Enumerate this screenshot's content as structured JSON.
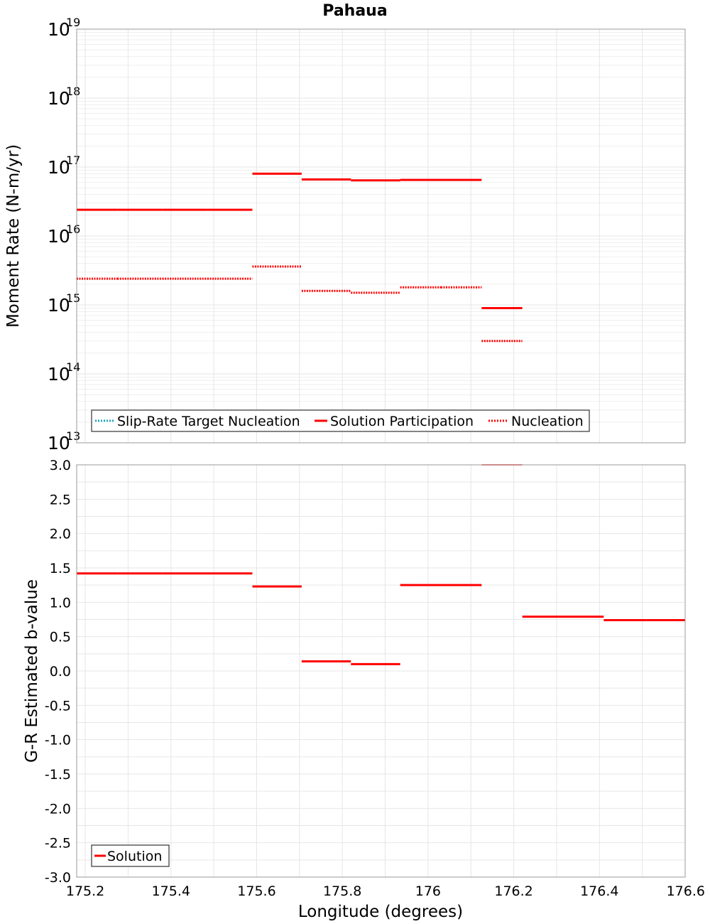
{
  "chart_data": [
    {
      "type": "line",
      "title": "Pahaua",
      "ylabel": "Moment Rate (N-m/yr)",
      "xlabel": "",
      "yscale": "log",
      "ylim": [
        10000000000000.0,
        1e+19
      ],
      "xlim": [
        175.18,
        176.6
      ],
      "y_ticks": [
        {
          "base": "10",
          "exp": "13"
        },
        {
          "base": "10",
          "exp": "14"
        },
        {
          "base": "10",
          "exp": "15"
        },
        {
          "base": "10",
          "exp": "16"
        },
        {
          "base": "10",
          "exp": "17"
        },
        {
          "base": "10",
          "exp": "18"
        },
        {
          "base": "10",
          "exp": "19"
        }
      ],
      "grid": true,
      "legend_position": "bottom-left",
      "series": [
        {
          "name": "Slip-Rate Target Nucleation",
          "color": "#1aa7c0",
          "style": "dotted",
          "segments": []
        },
        {
          "name": "Solution Participation",
          "color": "#ff0000",
          "style": "solid",
          "segments": [
            {
              "x0": 175.18,
              "x1": 175.275,
              "y": 2.4e+16
            },
            {
              "x0": 175.275,
              "x1": 175.38,
              "y": 2.4e+16
            },
            {
              "x0": 175.38,
              "x1": 175.485,
              "y": 2.4e+16
            },
            {
              "x0": 175.485,
              "x1": 175.59,
              "y": 2.4e+16
            },
            {
              "x0": 175.59,
              "x1": 175.705,
              "y": 8e+16
            },
            {
              "x0": 175.705,
              "x1": 175.82,
              "y": 6.6e+16
            },
            {
              "x0": 175.82,
              "x1": 175.935,
              "y": 6.4e+16
            },
            {
              "x0": 175.935,
              "x1": 176.03,
              "y": 6.5e+16
            },
            {
              "x0": 176.03,
              "x1": 176.125,
              "y": 6.5e+16
            },
            {
              "x0": 176.125,
              "x1": 176.22,
              "y": 900000000000000.0
            }
          ]
        },
        {
          "name": "Nucleation",
          "color": "#ff0000",
          "style": "dotted",
          "segments": [
            {
              "x0": 175.18,
              "x1": 175.275,
              "y": 2400000000000000.0
            },
            {
              "x0": 175.275,
              "x1": 175.38,
              "y": 2400000000000000.0
            },
            {
              "x0": 175.38,
              "x1": 175.485,
              "y": 2400000000000000.0
            },
            {
              "x0": 175.485,
              "x1": 175.59,
              "y": 2400000000000000.0
            },
            {
              "x0": 175.59,
              "x1": 175.705,
              "y": 3600000000000000.0
            },
            {
              "x0": 175.705,
              "x1": 175.82,
              "y": 1600000000000000.0
            },
            {
              "x0": 175.82,
              "x1": 175.935,
              "y": 1500000000000000.0
            },
            {
              "x0": 175.935,
              "x1": 176.03,
              "y": 1800000000000000.0
            },
            {
              "x0": 176.03,
              "x1": 176.125,
              "y": 1800000000000000.0
            },
            {
              "x0": 176.125,
              "x1": 176.22,
              "y": 300000000000000.0
            }
          ]
        }
      ]
    },
    {
      "type": "line",
      "title": "",
      "ylabel": "G-R Estimated b-value",
      "xlabel": "Longitude (degrees)",
      "ylim": [
        -3.0,
        3.0
      ],
      "xlim": [
        175.18,
        176.6
      ],
      "y_ticks": [
        "-3.0",
        "-2.5",
        "-2.0",
        "-1.5",
        "-1.0",
        "-0.5",
        "0.0",
        "0.5",
        "1.0",
        "1.5",
        "2.0",
        "2.5",
        "3.0"
      ],
      "x_ticks": [
        "175.2",
        "175.4",
        "175.6",
        "175.8",
        "176",
        "176.2",
        "176.4",
        "176.6"
      ],
      "grid": true,
      "legend_position": "bottom-left",
      "series": [
        {
          "name": "Solution",
          "color": "#ff0000",
          "style": "solid",
          "segments": [
            {
              "x0": 175.18,
              "x1": 175.275,
              "y": 1.42
            },
            {
              "x0": 175.275,
              "x1": 175.38,
              "y": 1.42
            },
            {
              "x0": 175.38,
              "x1": 175.485,
              "y": 1.42
            },
            {
              "x0": 175.485,
              "x1": 175.59,
              "y": 1.42
            },
            {
              "x0": 175.59,
              "x1": 175.705,
              "y": 1.23
            },
            {
              "x0": 175.705,
              "x1": 175.82,
              "y": 0.14
            },
            {
              "x0": 175.82,
              "x1": 175.935,
              "y": 0.1
            },
            {
              "x0": 175.935,
              "x1": 176.03,
              "y": 1.25
            },
            {
              "x0": 176.03,
              "x1": 176.125,
              "y": 1.25
            },
            {
              "x0": 176.125,
              "x1": 176.22,
              "y": 3.0
            },
            {
              "x0": 176.22,
              "x1": 176.31,
              "y": 0.79
            },
            {
              "x0": 176.31,
              "x1": 176.41,
              "y": 0.79
            },
            {
              "x0": 176.41,
              "x1": 176.51,
              "y": 0.74
            },
            {
              "x0": 176.51,
              "x1": 176.6,
              "y": 0.74
            }
          ]
        }
      ]
    }
  ]
}
